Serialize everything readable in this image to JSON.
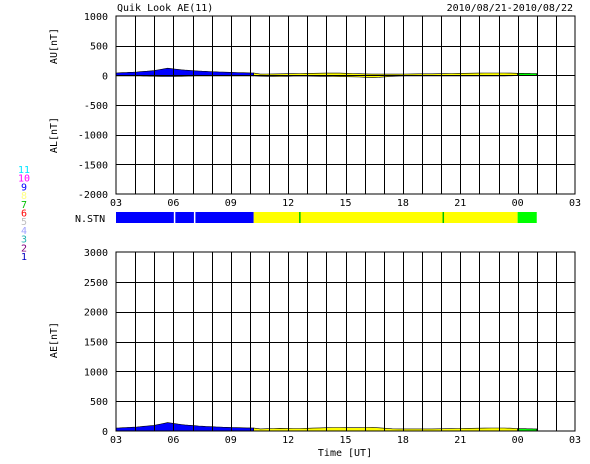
{
  "header": {
    "title": "Quik Look AE(11)",
    "date_range": "2010/08/21-2010/08/22"
  },
  "station_legend": {
    "labels": [
      "11",
      "10",
      "9",
      "8",
      "7",
      "6",
      "5",
      "4",
      "3",
      "2",
      "1"
    ],
    "colors": [
      "#00e5ff",
      "#ff00ff",
      "#0000ff",
      "#ffff80",
      "#00c000",
      "#ff0000",
      "#c0c0c0",
      "#a0a0ff",
      "#20b0b0",
      "#800080",
      "#0000c0"
    ]
  },
  "nstn_label": "N.STN",
  "colors": {
    "blue": "#0000ff",
    "yellow": "#ffff00",
    "green": "#00ff00",
    "grid": "#000000"
  },
  "chart_data": [
    {
      "type": "area",
      "name": "AU/AL",
      "ylabel_top": "AU[nT]",
      "ylabel_bottom": "AL[nT]",
      "ylim": [
        -2000,
        1000
      ],
      "yticks": [
        "1000",
        "500",
        "0",
        "-500",
        "-1000",
        "-1500",
        "-2000"
      ],
      "xlim_hours": [
        3,
        27
      ],
      "xticks": [
        "03",
        "06",
        "09",
        "12",
        "15",
        "18",
        "21",
        "00",
        "03"
      ],
      "grid": true,
      "series": [
        {
          "name": "AU",
          "x_hours": [
            3.0,
            4.0,
            5.0,
            5.7,
            6.5,
            7.5,
            8.5,
            9.5,
            10.2,
            10.5,
            11.5,
            12.5,
            13.5,
            14.5,
            15.5,
            16.5,
            17.5,
            18.5,
            19.5,
            20.5,
            21.5,
            22.5,
            23.5,
            24.0,
            25.0
          ],
          "values": [
            40,
            55,
            80,
            120,
            90,
            70,
            55,
            45,
            40,
            20,
            25,
            30,
            35,
            40,
            30,
            20,
            20,
            25,
            25,
            30,
            35,
            40,
            40,
            35,
            30
          ]
        },
        {
          "name": "AL",
          "x_hours": [
            3.0,
            4.0,
            5.0,
            5.7,
            6.5,
            7.5,
            8.5,
            9.5,
            10.2,
            10.5,
            11.5,
            12.5,
            13.5,
            14.5,
            15.5,
            16.5,
            17.5,
            18.5,
            19.5,
            20.5,
            21.5,
            22.5,
            23.5,
            24.0,
            25.0
          ],
          "values": [
            -10,
            -10,
            -15,
            -20,
            -15,
            -10,
            -10,
            -10,
            -10,
            -15,
            -20,
            -10,
            -15,
            -20,
            -25,
            -40,
            -15,
            -10,
            -10,
            -10,
            -10,
            -10,
            -10,
            -5,
            -5
          ]
        }
      ],
      "segment_colors": [
        {
          "from": 3.0,
          "to": 10.2,
          "color": "blue"
        },
        {
          "from": 10.2,
          "to": 24.0,
          "color": "yellow"
        },
        {
          "from": 24.0,
          "to": 25.0,
          "color": "green"
        }
      ]
    },
    {
      "type": "bar",
      "name": "N.STN",
      "segments": [
        {
          "from": 3.0,
          "to": 10.2,
          "color": "blue"
        },
        {
          "from": 10.2,
          "to": 24.0,
          "color": "yellow"
        },
        {
          "from": 24.0,
          "to": 25.0,
          "color": "green"
        }
      ],
      "markers": [
        {
          "at": 6.05,
          "color": "#ffffff"
        },
        {
          "at": 7.1,
          "color": "#ffffff"
        },
        {
          "at": 12.6,
          "color": "#00c000"
        },
        {
          "at": 20.1,
          "color": "#00c000"
        }
      ]
    },
    {
      "type": "area",
      "name": "AE",
      "ylabel": "AE[nT]",
      "xlabel": "Time [UT]",
      "ylim": [
        0,
        3000
      ],
      "yticks": [
        "3000",
        "2500",
        "2000",
        "1500",
        "1000",
        "500",
        "0"
      ],
      "xlim_hours": [
        3,
        27
      ],
      "xticks": [
        "03",
        "06",
        "09",
        "12",
        "15",
        "18",
        "21",
        "00",
        "03"
      ],
      "grid": true,
      "x_hours": [
        3.0,
        4.0,
        5.0,
        5.7,
        6.5,
        7.5,
        8.5,
        9.5,
        10.2,
        10.5,
        11.5,
        12.5,
        13.5,
        14.5,
        15.5,
        16.5,
        17.5,
        18.5,
        19.5,
        20.5,
        21.5,
        22.5,
        23.5,
        24.0,
        25.0
      ],
      "values": [
        50,
        65,
        95,
        140,
        105,
        80,
        65,
        55,
        50,
        35,
        45,
        40,
        50,
        60,
        55,
        60,
        35,
        35,
        35,
        40,
        45,
        50,
        50,
        40,
        35
      ],
      "segment_colors": [
        {
          "from": 3.0,
          "to": 10.2,
          "color": "blue"
        },
        {
          "from": 10.2,
          "to": 24.0,
          "color": "yellow"
        },
        {
          "from": 24.0,
          "to": 25.0,
          "color": "green"
        }
      ]
    }
  ]
}
